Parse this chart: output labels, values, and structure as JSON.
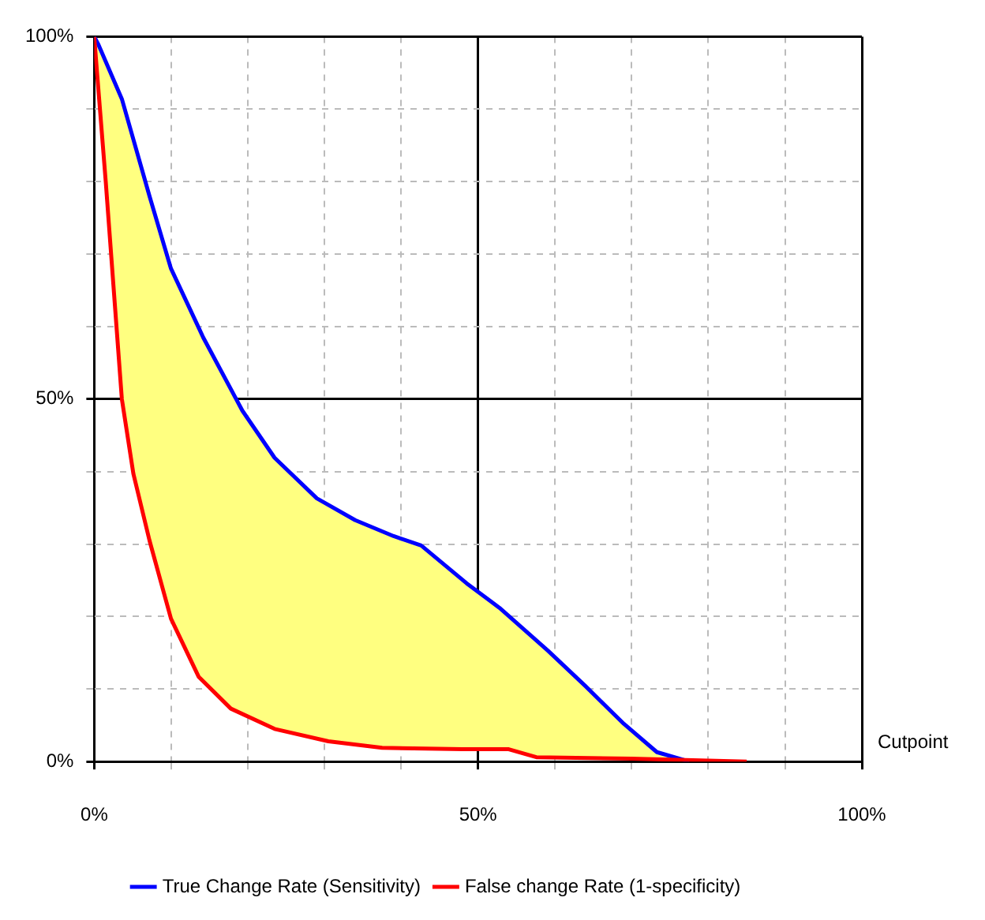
{
  "chart_data": {
    "type": "line",
    "xlabel": "Cutpoint",
    "xlim": [
      0,
      100
    ],
    "ylim": [
      0,
      100
    ],
    "xticks": [
      {
        "value": 0,
        "label": "0%"
      },
      {
        "value": 10,
        "label": null
      },
      {
        "value": 20,
        "label": null
      },
      {
        "value": 30,
        "label": null
      },
      {
        "value": 40,
        "label": null
      },
      {
        "value": 50,
        "label": "50%"
      },
      {
        "value": 60,
        "label": null
      },
      {
        "value": 70,
        "label": null
      },
      {
        "value": 80,
        "label": null
      },
      {
        "value": 90,
        "label": null
      },
      {
        "value": 100,
        "label": "100%"
      }
    ],
    "yticks": [
      {
        "value": 0,
        "label": "0%"
      },
      {
        "value": 10,
        "label": null
      },
      {
        "value": 20,
        "label": null
      },
      {
        "value": 30,
        "label": null
      },
      {
        "value": 40,
        "label": null
      },
      {
        "value": 50,
        "label": "50%"
      },
      {
        "value": 60,
        "label": null
      },
      {
        "value": 70,
        "label": null
      },
      {
        "value": 80,
        "label": null
      },
      {
        "value": 90,
        "label": null
      },
      {
        "value": 100,
        "label": "100%"
      }
    ],
    "grid": true,
    "legend": "bottom",
    "marker": "none",
    "line_style": "solid",
    "series": [
      {
        "name": "True Change Rate (Sensitivity)",
        "color": "#0000ff",
        "x": [
          0,
          0.5,
          3.6,
          7.2,
          10,
          14.2,
          19.3,
          23.5,
          29,
          34,
          39,
          42.6,
          46.8,
          48.5,
          52.8,
          59.1,
          64,
          69,
          73.3,
          77.5
        ],
        "values": [
          100,
          99,
          91.4,
          78,
          68,
          58.5,
          48.4,
          41.9,
          36.3,
          33.3,
          31.1,
          29.8,
          26.1,
          24.6,
          21.2,
          15.3,
          10.4,
          5.2,
          1.3,
          0
        ]
      },
      {
        "name": "False change Rate (1-specificity)",
        "color": "#ff0000",
        "x": [
          0,
          0.4,
          1.5,
          2.5,
          3.6,
          5.1,
          7.2,
          10,
          13.6,
          17.8,
          23.5,
          30.5,
          37.5,
          48,
          54,
          57.6,
          70,
          85
        ],
        "values": [
          100,
          94.6,
          80,
          65.7,
          50,
          39.7,
          30.5,
          19.7,
          11.7,
          7.3,
          4.5,
          2.8,
          1.9,
          1.7,
          1.7,
          0.6,
          0.4,
          0
        ]
      }
    ]
  }
}
